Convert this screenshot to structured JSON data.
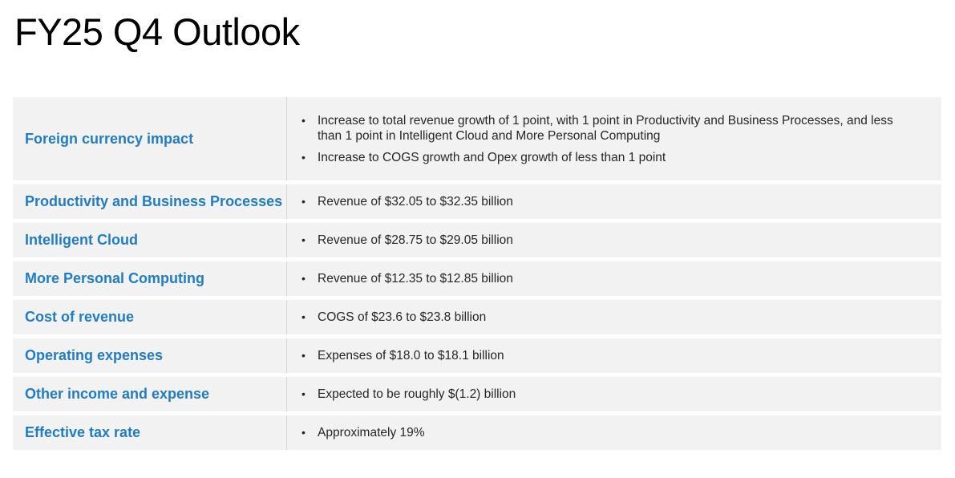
{
  "title": "FY25 Q4 Outlook",
  "rows": [
    {
      "label": "Foreign currency impact",
      "bullets": [
        "Increase to total revenue growth of 1 point, with 1 point in Productivity and Business Processes, and less than 1 point in Intelligent Cloud and More Personal Computing",
        "Increase to COGS growth and Opex growth of less than 1 point"
      ]
    },
    {
      "label": "Productivity and Business Processes",
      "bullets": [
        "Revenue of $32.05 to $32.35 billion"
      ]
    },
    {
      "label": "Intelligent Cloud",
      "bullets": [
        "Revenue of $28.75 to $29.05 billion"
      ]
    },
    {
      "label": "More Personal Computing",
      "bullets": [
        "Revenue of $12.35 to $12.85 billion"
      ]
    },
    {
      "label": "Cost of revenue",
      "bullets": [
        "COGS of $23.6 to $23.8 billion"
      ]
    },
    {
      "label": "Operating expenses",
      "bullets": [
        "Expenses of $18.0 to $18.1 billion"
      ]
    },
    {
      "label": "Other income and expense",
      "bullets": [
        "Expected to be roughly $(1.2) billion"
      ]
    },
    {
      "label": "Effective tax rate",
      "bullets": [
        "Approximately 19%"
      ]
    }
  ],
  "colors": {
    "label_text": "#1f7dc6",
    "row_background": "#f2f2f2",
    "body_text": "#262626"
  }
}
